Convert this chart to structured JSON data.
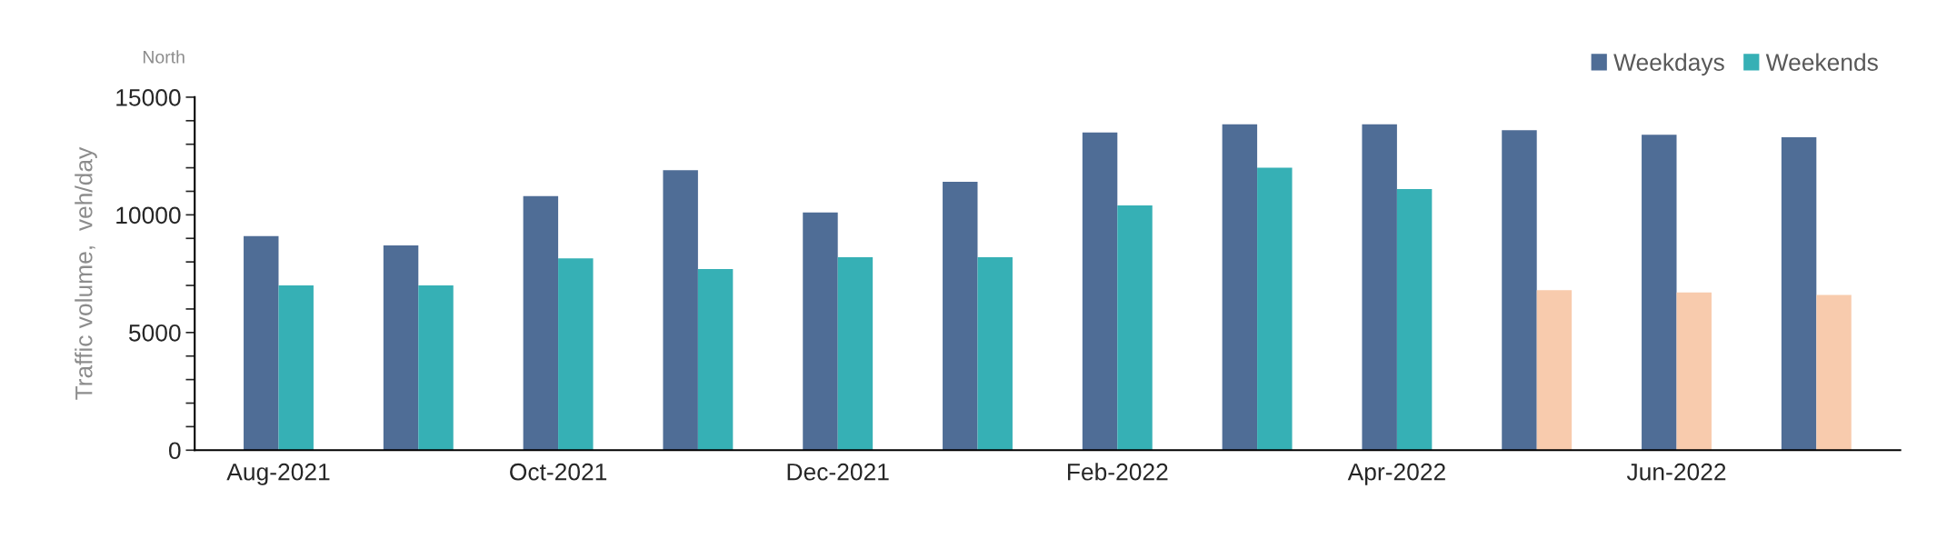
{
  "chart_data": {
    "type": "bar",
    "title": "North",
    "ylabel": "Traffic volume,  veh/day",
    "categories": [
      "Aug-2021",
      null,
      "Oct-2021",
      null,
      "Dec-2021",
      null,
      "Feb-2022",
      null,
      "Apr-2022",
      null,
      "Jun-2022",
      null
    ],
    "series": [
      {
        "name": "Weekdays",
        "color": "#4f6d96",
        "values": [
          9100,
          8700,
          10800,
          11900,
          10100,
          11400,
          13500,
          13850,
          13850,
          13600,
          13400,
          13300
        ]
      },
      {
        "name": "Weekends",
        "color": "#36b0b5",
        "colors": [
          "#36b0b5",
          "#36b0b5",
          "#36b0b5",
          "#36b0b5",
          "#36b0b5",
          "#36b0b5",
          "#36b0b5",
          "#36b0b5",
          "#36b0b5",
          "#f8cbad",
          "#f8cbad",
          "#f8cbad"
        ],
        "values": [
          7000,
          7000,
          8150,
          7700,
          8200,
          8200,
          10400,
          12000,
          11100,
          6800,
          6700,
          6600
        ]
      }
    ],
    "ylim": [
      0,
      15000
    ],
    "yticks": [
      0,
      {
        "value": 1000,
        "label": null
      },
      {
        "value": 2000,
        "label": null
      },
      {
        "value": 3000,
        "label": null
      },
      {
        "value": 4000,
        "label": null
      },
      5000,
      {
        "value": 6000,
        "label": null
      },
      {
        "value": 7000,
        "label": null
      },
      {
        "value": 8000,
        "label": null
      },
      {
        "value": 9000,
        "label": null
      },
      10000,
      {
        "value": 11000,
        "label": null
      },
      {
        "value": 12000,
        "label": null
      },
      {
        "value": 13000,
        "label": null
      },
      {
        "value": 14000,
        "label": null
      },
      15000
    ],
    "grid": false,
    "legend": "top right"
  }
}
